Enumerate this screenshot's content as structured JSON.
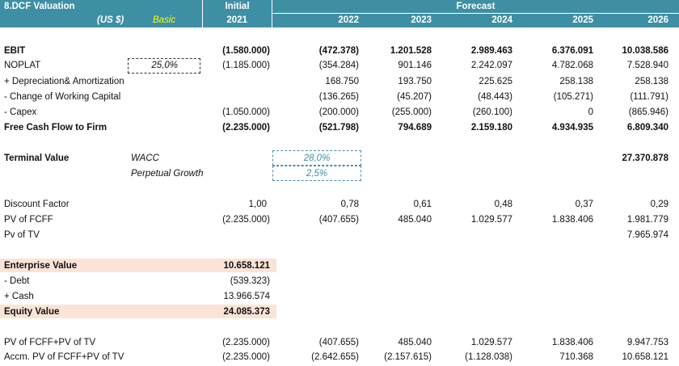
{
  "header": {
    "title": "8.DCF Valuation",
    "currency": "(US $)",
    "scenario": "Basic",
    "initial_label": "Initial",
    "forecast_label": "Forecast",
    "years": [
      "2021",
      "2022",
      "2023",
      "2024",
      "2025",
      "2026"
    ]
  },
  "rows": {
    "ebit": {
      "label": "EBIT",
      "values": [
        "(1.580.000)",
        "(472.378)",
        "1.201.528",
        "2.989.463",
        "6.376.091",
        "10.038.586"
      ]
    },
    "noplat": {
      "label": "NOPLAT",
      "tax": "25,0%",
      "values": [
        "(1.185.000)",
        "(354.284)",
        "901.146",
        "2.242.097",
        "4.782.068",
        "7.528.940"
      ]
    },
    "depreciation": {
      "label": " + Depreciation& Amortization",
      "values": [
        "",
        "168.750",
        "193.750",
        "225.625",
        "258.138",
        "258.138"
      ]
    },
    "wc": {
      "label": " - Change of Working Capital",
      "values": [
        "",
        "(136.265)",
        "(45.207)",
        "(48.443)",
        "(105.271)",
        "(111.791)"
      ]
    },
    "capex": {
      "label": " - Capex",
      "values": [
        "(1.050.000)",
        "(200.000)",
        "(255.000)",
        "(260.100)",
        "0",
        "(865.946)"
      ]
    },
    "fcff": {
      "label": "Free Cash Flow to Firm",
      "values": [
        "(2.235.000)",
        "(521.798)",
        "794.689",
        "2.159.180",
        "4.934.935",
        "6.809.340"
      ]
    }
  },
  "terminal": {
    "label": "Terminal Value",
    "wacc_label": "WACC",
    "wacc": "28,0%",
    "growth_label": "Perpetual Growth",
    "growth": "2,5%",
    "value": "27.370.878"
  },
  "discount": {
    "discount_factor": {
      "label": "Discount Factor",
      "values": [
        "1,00",
        "0,78",
        "0,61",
        "0,48",
        "0,37",
        "0,29"
      ]
    },
    "pv_fcff": {
      "label": "PV of FCFF",
      "values": [
        "(2.235.000)",
        "(407.655)",
        "485.040",
        "1.029.577",
        "1.838.406",
        "1.981.779"
      ]
    },
    "pv_tv": {
      "label": "Pv of TV",
      "values": [
        "",
        "",
        "",
        "",
        "",
        "7.965.974"
      ]
    }
  },
  "valuation": {
    "ev_label": "Enterprise Value",
    "ev": "10.658.121",
    "debt_label": " - Debt",
    "debt": "(539.323)",
    "cash_label": " + Cash",
    "cash": "13.966.574",
    "equity_label": "Equity Value",
    "equity": "24.085.373"
  },
  "summary": {
    "pv_total": {
      "label": "PV of FCFF+PV of TV",
      "values": [
        "(2.235.000)",
        "(407.655)",
        "485.040",
        "1.029.577",
        "1.838.406",
        "9.947.753"
      ]
    },
    "accum": {
      "label": "Accm. PV of FCFF+PV of TV",
      "values": [
        "(2.235.000)",
        "(2.642.655)",
        "(2.157.615)",
        "(1.128.038)",
        "710.368",
        "10.658.121"
      ]
    }
  }
}
